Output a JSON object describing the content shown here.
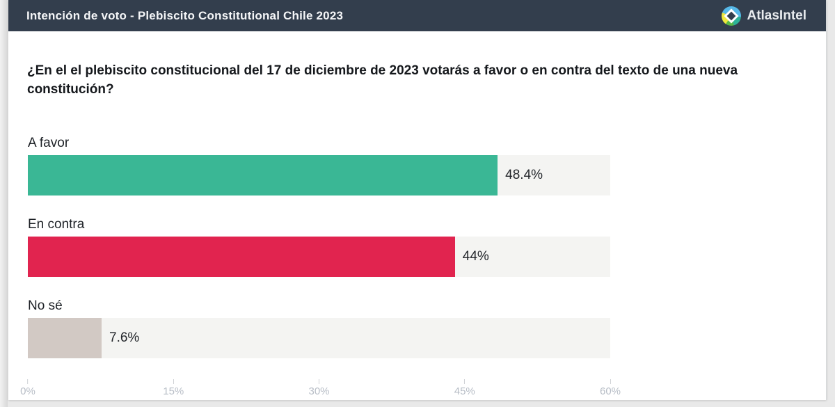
{
  "window": {
    "title": "Intención de voto - Plebiscito Constitutional Chile 2023",
    "brand_name": "AtlasIntel"
  },
  "question": "¿En el el plebiscito constitucional del 17 de diciembre de 2023 votarás a favor o en contra del texto de una nueva constitución?",
  "chart_data": {
    "type": "bar",
    "orientation": "horizontal",
    "title": "Intención de voto - Plebiscito Constitutional Chile 2023",
    "categories": [
      "A favor",
      "En contra",
      "No sé"
    ],
    "values": [
      48.4,
      44,
      7.6
    ],
    "value_labels": [
      "48.4%",
      "44%",
      "7.6%"
    ],
    "bar_colors": [
      "#3ab795",
      "#e1244f",
      "#d2c9c4"
    ],
    "track_color": "#f4f4f2",
    "xlim": [
      0,
      60
    ],
    "x_tick_values": [
      0,
      15,
      30,
      45,
      60
    ],
    "x_tick_labels": [
      "0%",
      "15%",
      "30%",
      "45%",
      "60%"
    ],
    "grid": false,
    "legend": "none"
  },
  "colors": {
    "header_background": "#333e4d",
    "header_text": "#f5f6f8",
    "accent_positive": "#3ab795",
    "accent_negative": "#e1244f",
    "accent_neutral": "#d2c9c4",
    "axis_text": "#b7bdc6",
    "logo_blue": "#56b8e8",
    "logo_teal": "#2eb398",
    "logo_green": "#58b947",
    "logo_yellow": "#efe83d"
  }
}
